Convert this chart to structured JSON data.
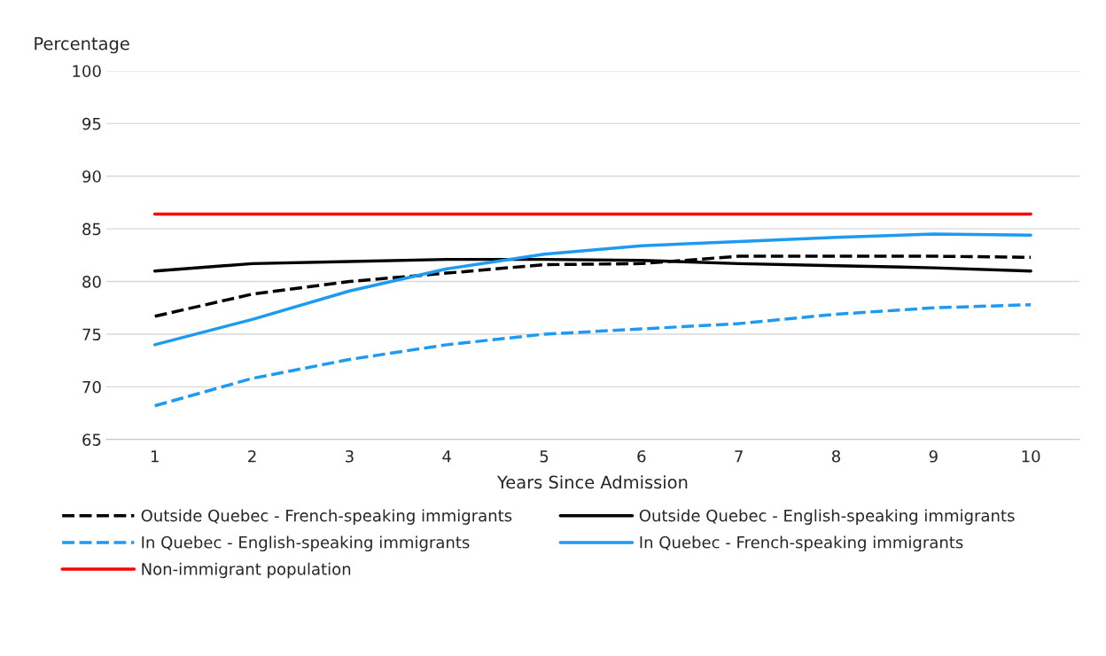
{
  "chart_data": {
    "type": "line",
    "ylabel": "Percentage",
    "xlabel": "Years Since Admission",
    "categories": [
      "1",
      "2",
      "3",
      "4",
      "5",
      "6",
      "7",
      "8",
      "9",
      "10"
    ],
    "ylim": [
      65,
      100
    ],
    "yticks": [
      65,
      70,
      75,
      80,
      85,
      90,
      95,
      100
    ],
    "grid": "y",
    "legend": "bottom",
    "marker": "none",
    "series": [
      {
        "name": "Outside Quebec - French-speaking immigrants",
        "color": "#000000",
        "line_style": "dashed",
        "values": [
          76.7,
          78.8,
          80.0,
          80.8,
          81.6,
          81.7,
          82.4,
          82.4,
          82.4,
          82.3
        ]
      },
      {
        "name": "Outside Quebec - English-speaking immigrants",
        "color": "#000000",
        "line_style": "solid",
        "values": [
          81.0,
          81.7,
          81.9,
          82.1,
          82.1,
          82.0,
          81.7,
          81.5,
          81.3,
          81.0
        ]
      },
      {
        "name": "In Quebec - English-speaking immigrants",
        "color": "#1e9bf0",
        "line_style": "dashed",
        "values": [
          68.2,
          70.8,
          72.6,
          74.0,
          75.0,
          75.5,
          76.0,
          76.9,
          77.5,
          77.8
        ]
      },
      {
        "name": "In Quebec - French-speaking immigrants",
        "color": "#1e9bf0",
        "line_style": "solid",
        "values": [
          74.0,
          76.4,
          79.1,
          81.2,
          82.6,
          83.4,
          83.8,
          84.2,
          84.5,
          84.4
        ]
      },
      {
        "name": "Non-immigrant population",
        "color": "#ff0000",
        "line_style": "solid",
        "values": [
          86.4,
          86.4,
          86.4,
          86.4,
          86.4,
          86.4,
          86.4,
          86.4,
          86.4,
          86.4
        ]
      }
    ]
  }
}
